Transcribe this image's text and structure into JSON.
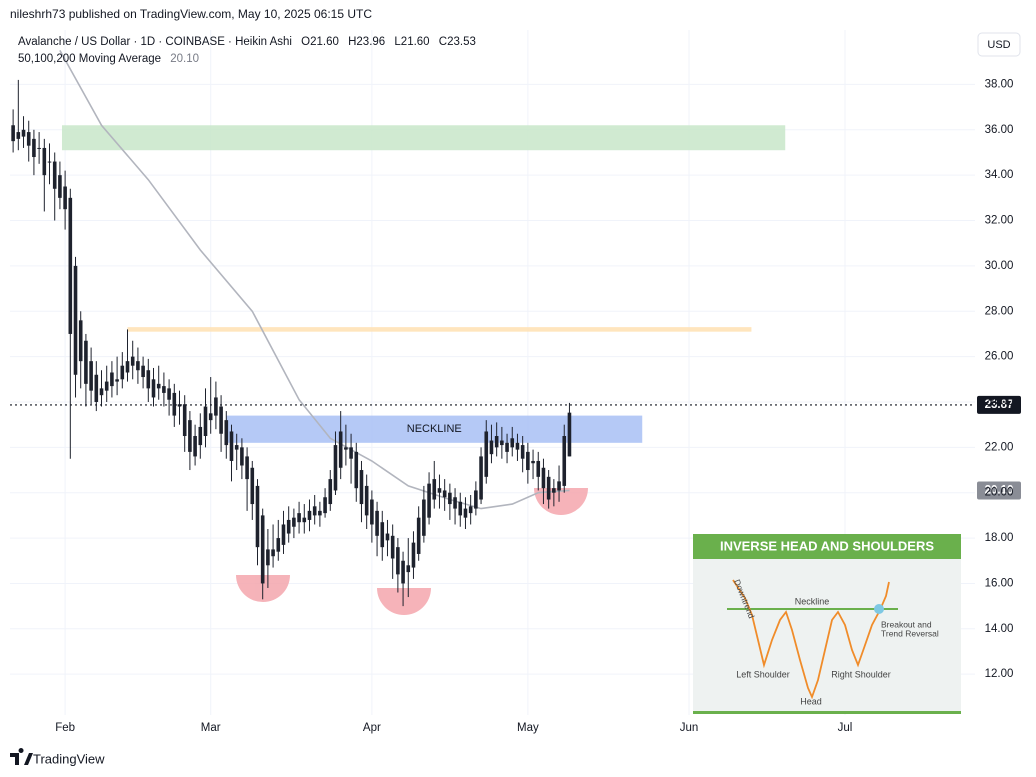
{
  "header": {
    "published": "nileshrh73 published on TradingView.com, May 10, 2025 06:15 UTC"
  },
  "footer": {
    "brand": "TradingView"
  },
  "chart_data": {
    "type": "candlestick",
    "title": "Avalanche / US Dollar · 1D · COINBASE · Heikin Ashi",
    "ohlc_text": [
      "O21.60",
      "H23.96",
      "L21.60",
      "C23.53"
    ],
    "indicator": "50,100,200 Moving Average",
    "indicator_value": {
      "value": 20.1,
      "label": "20.10"
    },
    "currency": "USD",
    "xlim": [
      21.4,
      207
    ],
    "xticks": [
      {
        "value": 32,
        "label": "Feb"
      },
      {
        "value": 60,
        "label": "Mar"
      },
      {
        "value": 91,
        "label": "Apr"
      },
      {
        "value": 121,
        "label": "May"
      },
      {
        "value": 152,
        "label": "Jun"
      },
      {
        "value": 182,
        "label": "Jul"
      }
    ],
    "ylim": [
      10.2,
      40.4
    ],
    "yticks": [
      {
        "value": 12,
        "label": "12.00"
      },
      {
        "value": 14,
        "label": "14.00"
      },
      {
        "value": 16,
        "label": "16.00"
      },
      {
        "value": 18,
        "label": "18.00"
      },
      {
        "value": 20,
        "label": "20.00"
      },
      {
        "value": 22,
        "label": "22.00"
      },
      {
        "value": 24,
        "label": "24.00"
      },
      {
        "value": 26,
        "label": "26.00"
      },
      {
        "value": 28,
        "label": "28.00"
      },
      {
        "value": 30,
        "label": "30.00"
      },
      {
        "value": 32,
        "label": "32.00"
      },
      {
        "value": 34,
        "label": "34.00"
      },
      {
        "value": 36,
        "label": "36.00"
      },
      {
        "value": 38,
        "label": "38.00"
      }
    ],
    "grid": true,
    "series": [
      {
        "color": "#1e222d",
        "x": [
          22,
          23,
          24,
          25,
          26,
          27,
          28,
          29,
          30,
          31,
          32,
          33,
          34,
          35,
          36,
          37,
          38,
          39,
          40,
          41,
          42,
          43,
          44,
          45,
          46,
          47,
          48,
          49,
          50,
          51,
          52,
          53,
          54,
          55,
          56,
          57,
          58,
          59,
          60,
          61,
          62,
          63,
          64,
          65,
          66,
          67,
          68,
          69,
          70,
          71,
          72,
          73,
          74,
          75,
          76,
          77,
          78,
          79,
          80,
          81,
          82,
          83,
          84,
          85,
          86,
          87,
          88,
          89,
          90,
          91,
          92,
          93,
          94,
          95,
          96,
          97,
          98,
          99,
          100,
          101,
          102,
          103,
          104,
          105,
          106,
          107,
          108,
          109,
          110,
          111,
          112,
          113,
          114,
          115,
          116,
          117,
          118,
          119,
          120,
          121,
          122,
          123,
          124,
          125,
          126,
          127,
          128,
          129
        ],
        "open": [
          35.5,
          35.9,
          35.7,
          35.9,
          35.6,
          35.2,
          35.2,
          34.6,
          34.6,
          34.0,
          33.5,
          33.0,
          30.0,
          27.6,
          26.7,
          25.8,
          25.2,
          24.6,
          24.5,
          24.7,
          25.0,
          25.0,
          25.3,
          25.6,
          25.8,
          25.6,
          25.4,
          25.0,
          24.6,
          24.7,
          24.6,
          24.4,
          23.9,
          23.9,
          23.2,
          22.5,
          22.1,
          22.5,
          23.2,
          23.4,
          23.8,
          23.2,
          22.7,
          22.1,
          22.0,
          21.6,
          21.1,
          20.3,
          19.0,
          17.5,
          17.2,
          17.4,
          17.7,
          18.2,
          18.5,
          18.7,
          18.9,
          18.8,
          19.0,
          19.2,
          19.1,
          19.5,
          20.1,
          21.1,
          21.9,
          22.0,
          21.8,
          21.0,
          20.3,
          19.7,
          19.2,
          18.7,
          18.2,
          18.1,
          17.6,
          17.0,
          16.5,
          16.7,
          17.3,
          18.1,
          18.9,
          19.7,
          20.2,
          20.1,
          20.0,
          19.8,
          19.6,
          19.3,
          19.1,
          19.3,
          19.7,
          20.7,
          21.7,
          22.0,
          22.3,
          22.2,
          22.0,
          22.2,
          22.1,
          21.8,
          21.4,
          21.4,
          21.1,
          20.7,
          20.2,
          20.1,
          20.3,
          21.6
        ],
        "high": [
          36.9,
          38.2,
          36.6,
          36.4,
          36.0,
          35.9,
          35.6,
          35.4,
          35.0,
          34.6,
          34.2,
          33.4,
          30.4,
          28.0,
          27.0,
          26.4,
          25.8,
          25.4,
          25.6,
          25.8,
          26.0,
          26.2,
          27.2,
          26.7,
          26.4,
          26.0,
          25.9,
          25.5,
          25.6,
          25.3,
          25.0,
          24.8,
          24.5,
          24.3,
          23.6,
          23.0,
          23.5,
          24.6,
          25.1,
          24.9,
          24.3,
          23.6,
          23.0,
          22.6,
          22.4,
          22.0,
          21.4,
          20.6,
          19.3,
          18.4,
          18.6,
          18.8,
          19.2,
          19.4,
          19.3,
          19.6,
          19.5,
          19.7,
          19.9,
          19.6,
          20.2,
          21.0,
          22.7,
          23.6,
          23.0,
          22.6,
          22.2,
          21.4,
          20.8,
          20.1,
          19.6,
          19.2,
          18.8,
          18.6,
          18.0,
          17.4,
          18.0,
          18.3,
          19.4,
          20.3,
          20.9,
          21.4,
          20.8,
          20.6,
          20.4,
          20.2,
          20.0,
          19.8,
          19.9,
          20.5,
          22.0,
          23.2,
          23.0,
          23.1,
          22.9,
          22.6,
          22.9,
          22.6,
          22.5,
          22.2,
          21.9,
          21.8,
          21.5,
          21.0,
          20.6,
          21.2,
          23.0,
          23.96
        ],
        "low": [
          35.0,
          35.1,
          35.2,
          34.6,
          34.0,
          34.5,
          32.4,
          33.6,
          32.0,
          32.5,
          31.6,
          21.5,
          24.2,
          24.6,
          23.8,
          23.9,
          23.6,
          23.8,
          24.0,
          24.2,
          24.3,
          24.6,
          24.9,
          25.0,
          24.8,
          24.6,
          24.0,
          23.8,
          24.1,
          23.8,
          23.4,
          22.9,
          23.0,
          21.8,
          21.0,
          21.2,
          21.5,
          22.0,
          22.6,
          22.8,
          21.8,
          21.5,
          20.5,
          21.0,
          20.6,
          19.2,
          18.8,
          16.8,
          15.3,
          15.8,
          16.7,
          17.0,
          17.3,
          17.8,
          18.0,
          18.2,
          18.2,
          18.3,
          18.6,
          18.5,
          18.9,
          19.2,
          19.9,
          20.6,
          21.2,
          20.4,
          19.6,
          18.7,
          18.4,
          17.8,
          17.2,
          17.0,
          17.2,
          16.2,
          15.6,
          15.0,
          15.4,
          16.2,
          17.0,
          17.8,
          18.6,
          19.3,
          19.3,
          19.2,
          18.8,
          18.6,
          18.5,
          18.4,
          18.6,
          19.0,
          19.5,
          20.4,
          21.3,
          21.6,
          21.5,
          21.3,
          21.6,
          21.4,
          20.9,
          20.4,
          20.6,
          20.1,
          19.5,
          19.3,
          19.4,
          19.6,
          20.0,
          21.6
        ],
        "close": [
          36.2,
          35.6,
          36.0,
          35.3,
          34.8,
          35.2,
          34.0,
          34.6,
          33.4,
          33.0,
          32.5,
          27.0,
          25.2,
          25.8,
          24.8,
          24.5,
          24.0,
          24.3,
          24.9,
          25.3,
          24.9,
          25.6,
          25.8,
          26.0,
          25.4,
          25.1,
          24.6,
          24.2,
          24.8,
          24.4,
          24.1,
          23.4,
          23.8,
          22.5,
          21.8,
          21.6,
          22.9,
          23.8,
          23.5,
          24.2,
          22.6,
          22.1,
          21.4,
          21.9,
          21.2,
          20.6,
          19.5,
          17.6,
          16.0,
          16.8,
          17.5,
          18.0,
          18.6,
          18.8,
          18.9,
          19.1,
          18.7,
          19.2,
          19.4,
          19.0,
          19.8,
          20.6,
          22.1,
          22.7,
          22.0,
          21.5,
          20.2,
          19.5,
          19.0,
          18.6,
          18.1,
          17.6,
          17.9,
          17.1,
          16.4,
          16.0,
          16.8,
          17.8,
          18.9,
          19.7,
          20.4,
          20.6,
          20.0,
          19.8,
          19.5,
          19.3,
          19.0,
          18.9,
          19.4,
          20.1,
          21.6,
          22.7,
          22.3,
          22.5,
          22.1,
          21.8,
          22.4,
          21.9,
          21.5,
          21.0,
          21.3,
          20.7,
          20.2,
          19.7,
          20.0,
          20.5,
          22.5,
          23.53
        ]
      }
    ],
    "moving_average": {
      "color": "#b2b5be",
      "x": [
        31,
        39,
        48,
        58,
        68,
        77,
        83,
        91,
        98,
        106,
        112,
        118,
        123,
        129
      ],
      "values": [
        39.5,
        36.2,
        33.8,
        30.7,
        28.0,
        24.1,
        22.4,
        21.4,
        20.3,
        19.7,
        19.3,
        19.5,
        20.0,
        20.1
      ]
    },
    "last_price": 23.87,
    "zones": [
      {
        "color": "#c8e6c9",
        "x_range": [
          31.4,
          170.5
        ],
        "y_range": [
          35.1,
          36.2
        ]
      },
      {
        "color": "#ffe0b2",
        "x_range": [
          44,
          164
        ],
        "y_range": [
          27.1,
          27.3
        ]
      },
      {
        "color": "#a8bff5",
        "x_range": [
          63,
          143
        ],
        "y_range": [
          22.2,
          23.4
        ],
        "label": "NECKLINE"
      }
    ],
    "inset": {
      "title": "INVERSE HEAD AND SHOULDERS",
      "downtrend": "Downtrend",
      "neckline": "Neckline",
      "breakout": [
        "Breakout and",
        "Trend Reversal"
      ],
      "left_shoulder": "Left Shoulder",
      "head": "Head",
      "right_shoulder": "Right Shoulder"
    }
  }
}
